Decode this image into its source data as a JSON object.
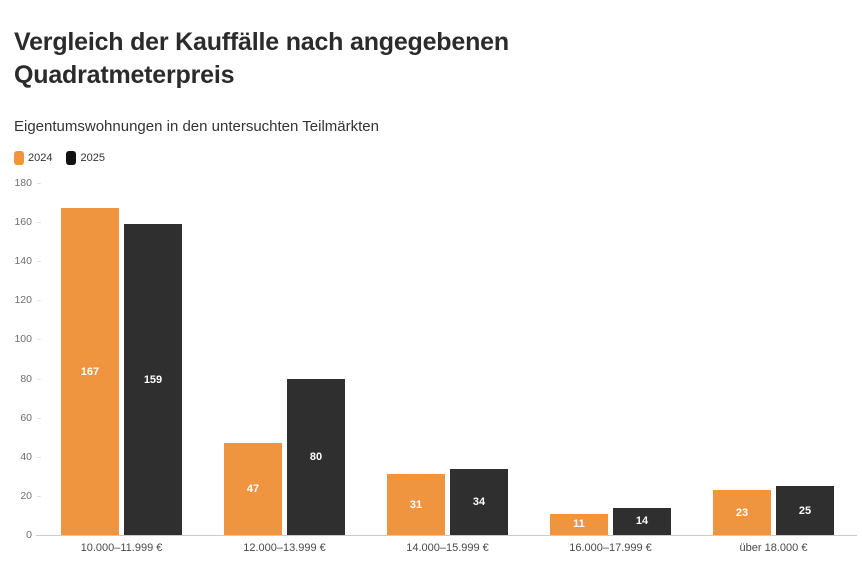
{
  "header": {
    "title": "Vergleich der Kauffälle nach angegebenen Quadratmeterpreis",
    "subtitle": "Eigentumswohnungen in den untersuchten Teilmärkten"
  },
  "legend": {
    "position": "top-left",
    "items": [
      {
        "label": "2024",
        "color": "#EF9540"
      },
      {
        "label": "2025",
        "color": "#121212"
      }
    ]
  },
  "chart_data": {
    "type": "bar",
    "title": "Vergleich der Kauffälle nach angegebenen Quadratmeterpreis",
    "subtitle": "Eigentumswohnungen in den untersuchten Teilmärkten",
    "categories": [
      "10.000–11.999 €",
      "12.000–13.999 €",
      "14.000–15.999 €",
      "16.000–17.999 €",
      "über 18.000 €"
    ],
    "series": [
      {
        "name": "2024",
        "color": "#EF9540",
        "values": [
          167,
          47,
          31,
          11,
          23
        ]
      },
      {
        "name": "2025",
        "color": "#2F2F2F",
        "values": [
          159,
          80,
          34,
          14,
          25
        ]
      }
    ],
    "xlabel": "",
    "ylabel": "",
    "ylim": [
      0,
      180
    ],
    "yticks": [
      0,
      20,
      40,
      60,
      80,
      100,
      120,
      140,
      160,
      180
    ],
    "grid": "off",
    "legend_position": "top-left",
    "value_labels": "inside, white, bold"
  }
}
